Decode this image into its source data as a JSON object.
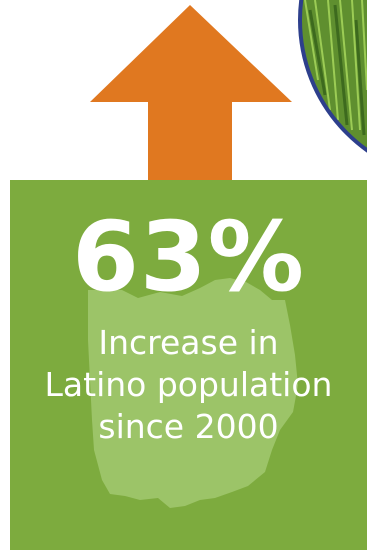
{
  "colors": {
    "arrow": "#e07820",
    "panel": "#7dab3e",
    "state_silhouette": "#9cc468",
    "text": "#ffffff",
    "photo_border": "#2d3f8c"
  },
  "stat": {
    "value": "63%",
    "caption_line1": "Increase in",
    "caption_line2": "Latino population",
    "caption_line3": "since 2000"
  },
  "icons": {
    "arrow": "up-arrow-icon",
    "map": "ohio-map-icon"
  }
}
